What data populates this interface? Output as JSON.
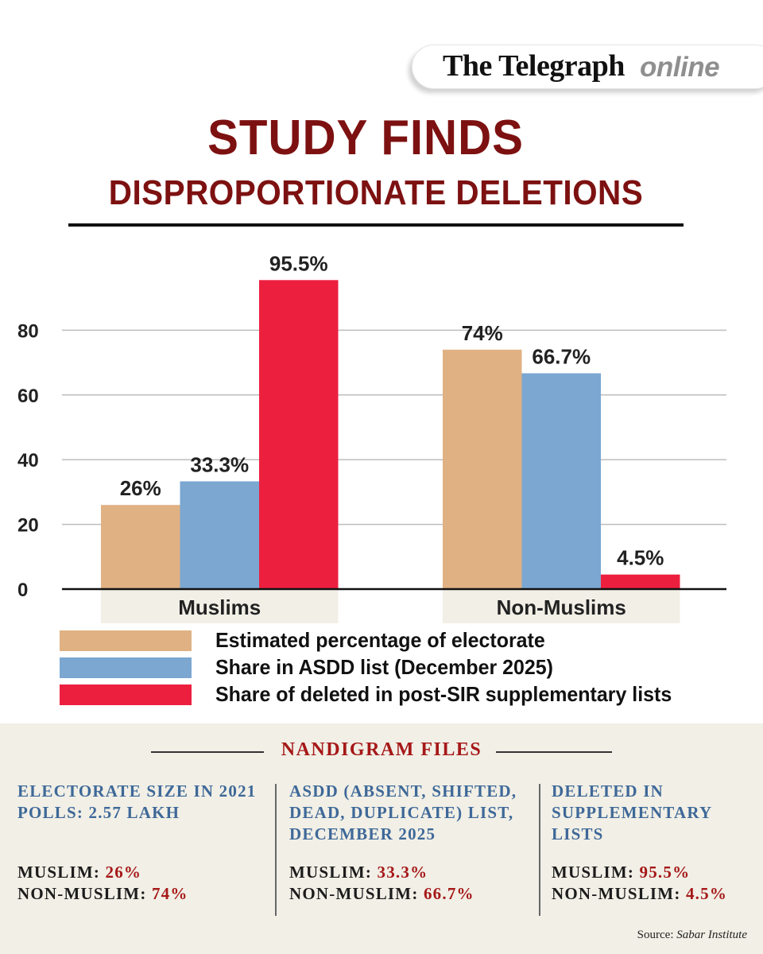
{
  "masthead": {
    "brand": "The Telegraph",
    "suffix": "online"
  },
  "headline": {
    "line1": "STUDY FINDS",
    "line2": "DISPROPORTIONATE DELETIONS"
  },
  "colors": {
    "headline": "#7d1111",
    "electorate": "#e0b183",
    "asdd": "#7ba7d1",
    "deleted": "#ec1f3f",
    "panel_bg": "#f1efe6",
    "panel_heading": "#3e6898",
    "panel_accent": "#a61818"
  },
  "chart_data": {
    "type": "bar",
    "title": "",
    "xlabel": "",
    "ylabel": "",
    "categories": [
      "Muslims",
      "Non-Muslims"
    ],
    "series": [
      {
        "name": "Estimated percentage of electorate",
        "values": [
          26,
          74
        ],
        "labels": [
          "26%",
          "74%"
        ],
        "color": "#e0b183"
      },
      {
        "name": "Share in ASDD list (December 2025)",
        "values": [
          33.3,
          66.7
        ],
        "labels": [
          "33.3%",
          "66.7%"
        ],
        "color": "#7ba7d1"
      },
      {
        "name": "Share of deleted in post-SIR supplementary lists",
        "values": [
          95.5,
          4.5
        ],
        "labels": [
          "95.5%",
          "4.5%"
        ],
        "color": "#ec1f3f"
      }
    ],
    "yticks": [
      0,
      20,
      40,
      60,
      80
    ],
    "ylim": [
      0,
      100
    ],
    "grid": true,
    "legend": "bottom"
  },
  "panel": {
    "title": "NANDIGRAM FILES",
    "columns": [
      {
        "heading": [
          "ELECTORATE SIZE IN 2021",
          "POLLS: 2.57 LAKH"
        ],
        "muslim_label": "MUSLIM:",
        "muslim_value": "26%",
        "nonmuslim_label": "NON-MUSLIM:",
        "nonmuslim_value": "74%"
      },
      {
        "heading": [
          "ASDD (ABSENT, SHIFTED,",
          "DEAD, DUPLICATE) LIST,",
          "DECEMBER 2025"
        ],
        "muslim_label": "MUSLIM:",
        "muslim_value": "33.3%",
        "nonmuslim_label": "NON-MUSLIM:",
        "nonmuslim_value": "66.7%"
      },
      {
        "heading": [
          "DELETED IN",
          "SUPPLEMENTARY",
          "LISTS"
        ],
        "muslim_label": "MUSLIM:",
        "muslim_value": "95.5%",
        "nonmuslim_label": "NON-MUSLIM:",
        "nonmuslim_value": "4.5%"
      }
    ],
    "source_label": "Source:",
    "source_name": "Sabar Institute"
  }
}
